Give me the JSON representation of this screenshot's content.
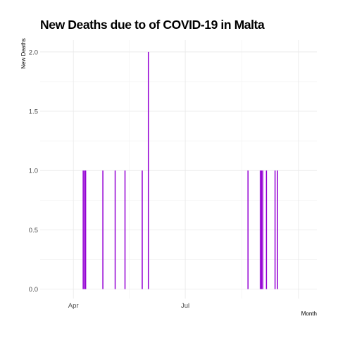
{
  "chart_data": {
    "type": "bar",
    "title": "New Deaths due to of COVID-19 in Malta",
    "xlabel": "Month",
    "ylabel": "New Deaths",
    "x_tick_labels": [
      {
        "date": "2020-04-01",
        "label": "Apr"
      },
      {
        "date": "2020-07-01",
        "label": "Jul"
      }
    ],
    "y_ticks": [
      0.0,
      0.5,
      1.0,
      1.5,
      2.0
    ],
    "ylim": [
      -0.08,
      2.1
    ],
    "xlim": [
      "2020-03-05",
      "2020-10-16"
    ],
    "grid": true,
    "bar_color": "#9400D3",
    "points": [
      {
        "date": "2020-04-09",
        "value": 1
      },
      {
        "date": "2020-04-10",
        "value": 1
      },
      {
        "date": "2020-04-11",
        "value": 1
      },
      {
        "date": "2020-04-25",
        "value": 1
      },
      {
        "date": "2020-05-05",
        "value": 1
      },
      {
        "date": "2020-05-13",
        "value": 1
      },
      {
        "date": "2020-05-27",
        "value": 1
      },
      {
        "date": "2020-06-01",
        "value": 2
      },
      {
        "date": "2020-08-21",
        "value": 1
      },
      {
        "date": "2020-08-31",
        "value": 1
      },
      {
        "date": "2020-09-01",
        "value": 1
      },
      {
        "date": "2020-09-02",
        "value": 1
      },
      {
        "date": "2020-09-05",
        "value": 1
      },
      {
        "date": "2020-09-12",
        "value": 1
      },
      {
        "date": "2020-09-14",
        "value": 1
      }
    ]
  }
}
